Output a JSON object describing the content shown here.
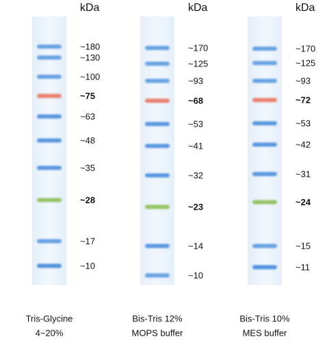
{
  "lanes": [
    {
      "unit": "kDa",
      "caption": [
        "Tris-Glycine",
        "4~20%"
      ],
      "bands": [
        {
          "label": "~180",
          "color": "#5a9ae0",
          "bold": false
        },
        {
          "label": "~130",
          "color": "#5a9ae0",
          "bold": false
        },
        {
          "label": "~100",
          "color": "#5a9ae0",
          "bold": false
        },
        {
          "label": "~75",
          "color": "#e8735e",
          "bold": true
        },
        {
          "label": "~63",
          "color": "#4a8ddc",
          "bold": false
        },
        {
          "label": "~48",
          "color": "#4a8ddc",
          "bold": false
        },
        {
          "label": "~35",
          "color": "#4a8ddc",
          "bold": false
        },
        {
          "label": "~28",
          "color": "#8cbe55",
          "bold": true
        },
        {
          "label": "~17",
          "color": "#5a9ae0",
          "bold": false
        },
        {
          "label": "~10",
          "color": "#3f86da",
          "bold": false
        }
      ]
    },
    {
      "unit": "kDa",
      "caption": [
        "Bis-Tris 12%",
        "MOPS buffer"
      ],
      "bands": [
        {
          "label": "~170",
          "color": "#5a9ae0",
          "bold": false
        },
        {
          "label": "~125",
          "color": "#5a9ae0",
          "bold": false
        },
        {
          "label": "~93",
          "color": "#5a9ae0",
          "bold": false
        },
        {
          "label": "~68",
          "color": "#e8735e",
          "bold": true
        },
        {
          "label": "~53",
          "color": "#4a8ddc",
          "bold": false
        },
        {
          "label": "~41",
          "color": "#4a8ddc",
          "bold": false
        },
        {
          "label": "~32",
          "color": "#4a8ddc",
          "bold": false
        },
        {
          "label": "~23",
          "color": "#8cbe55",
          "bold": true
        },
        {
          "label": "~14",
          "color": "#4a8ddc",
          "bold": false
        },
        {
          "label": "~10",
          "color": "#5a9ae0",
          "bold": false
        }
      ]
    },
    {
      "unit": "kDa",
      "caption": [
        "Bis-Tris 10%",
        "MES buffer"
      ],
      "bands": [
        {
          "label": "~170",
          "color": "#5a9ae0",
          "bold": false
        },
        {
          "label": "~125",
          "color": "#5a9ae0",
          "bold": false
        },
        {
          "label": "~93",
          "color": "#5a9ae0",
          "bold": false
        },
        {
          "label": "~72",
          "color": "#e8735e",
          "bold": true
        },
        {
          "label": "~53",
          "color": "#4a8ddc",
          "bold": false
        },
        {
          "label": "~42",
          "color": "#4a8ddc",
          "bold": false
        },
        {
          "label": "~31",
          "color": "#4a8ddc",
          "bold": false
        },
        {
          "label": "~24",
          "color": "#8cbe55",
          "bold": true
        },
        {
          "label": "~15",
          "color": "#5a9ae0",
          "bold": false
        },
        {
          "label": "~11",
          "color": "#3f86da",
          "bold": false
        }
      ]
    }
  ]
}
